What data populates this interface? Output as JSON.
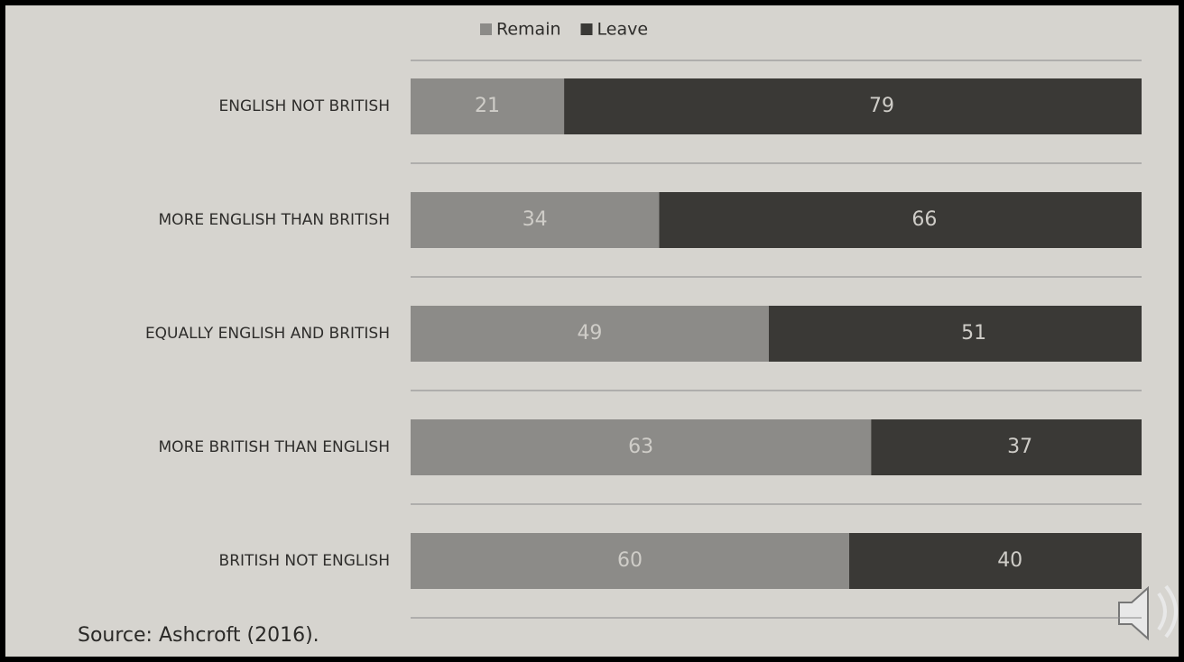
{
  "chart_data": {
    "type": "bar",
    "orientation": "horizontal",
    "stacked": true,
    "categories": [
      "ENGLISH NOT BRITISH",
      "MORE ENGLISH THAN BRITISH",
      "EQUALLY ENGLISH AND BRITISH",
      "MORE BRITISH THAN ENGLISH",
      "BRITISH NOT ENGLISH"
    ],
    "series": [
      {
        "name": "Remain",
        "color": "#8c8b88",
        "values": [
          21,
          34,
          49,
          63,
          60
        ]
      },
      {
        "name": "Leave",
        "color": "#3a3936",
        "values": [
          79,
          66,
          51,
          37,
          40
        ]
      }
    ],
    "legend": "top",
    "source": "Source: Ashcroft (2016)."
  }
}
